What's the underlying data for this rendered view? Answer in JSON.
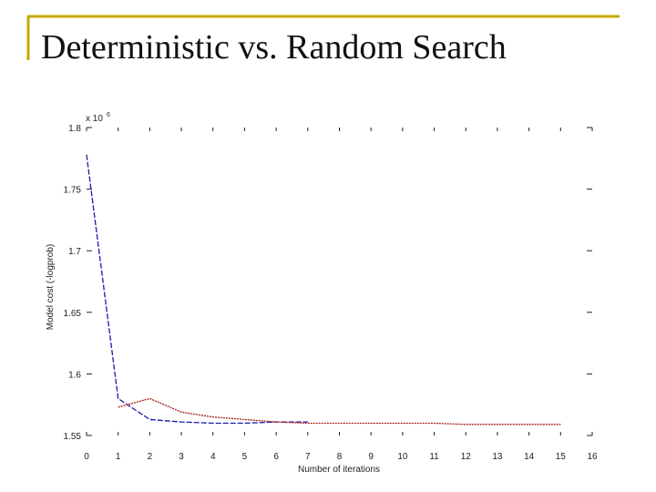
{
  "title": "Deterministic vs. Random Search",
  "chart_data": {
    "type": "line",
    "ylabel": "Model cost (-logprob)",
    "xlabel": "Number of iterations",
    "y_multiplier": "x 10",
    "y_multiplier_exp": "6",
    "x": [
      0,
      1,
      2,
      3,
      4,
      5,
      6,
      7,
      8,
      9,
      10,
      11,
      12,
      13,
      14,
      15
    ],
    "series": [
      {
        "color": "#1a1aa8",
        "dash": "6,2",
        "values": [
          1.778,
          1.58,
          1.563,
          1.561,
          1.56,
          1.56,
          1.561,
          1.561,
          null,
          null,
          null,
          null,
          null,
          null,
          null,
          null
        ]
      },
      {
        "color": "#a81a1a",
        "dash": "2,1",
        "values": [
          null,
          1.573,
          1.58,
          1.569,
          1.565,
          1.563,
          1.561,
          1.56,
          1.56,
          1.56,
          1.56,
          1.56,
          1.559,
          1.559,
          1.559,
          1.559
        ]
      }
    ],
    "xlim": [
      0,
      16
    ],
    "xticks": [
      0,
      1,
      2,
      3,
      4,
      5,
      6,
      7,
      8,
      9,
      10,
      11,
      12,
      13,
      14,
      15,
      16
    ],
    "ylim": [
      1.55,
      1.8
    ],
    "yticks": [
      1.55,
      1.6,
      1.65,
      1.7,
      1.75,
      1.8
    ]
  }
}
